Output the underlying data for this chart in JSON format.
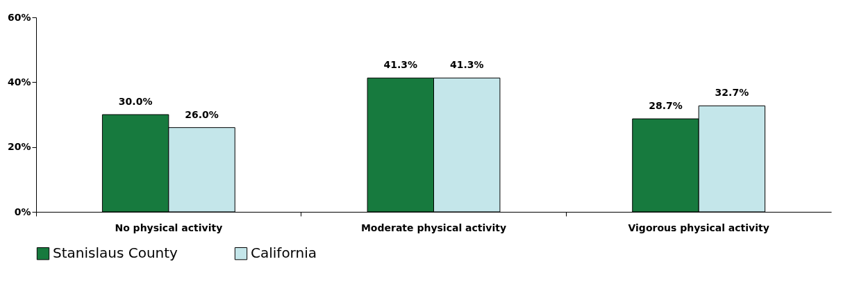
{
  "chart_data": {
    "type": "bar",
    "categories": [
      "No physical activity",
      "Moderate physical activity",
      "Vigorous physical activity"
    ],
    "series": [
      {
        "name": "Stanislaus County",
        "color": "#177a3e",
        "values": [
          30.0,
          41.3,
          28.7
        ],
        "value_labels": [
          "30.0%",
          "41.3%",
          "28.7%"
        ]
      },
      {
        "name": "California",
        "color": "#c4e6ea",
        "values": [
          26.0,
          41.3,
          32.7
        ],
        "value_labels": [
          "26.0%",
          "41.3%",
          "32.7%"
        ]
      }
    ],
    "ylim": [
      0,
      60
    ],
    "yticks": [
      {
        "value": 0,
        "label": "0%"
      },
      {
        "value": 20,
        "label": "20%"
      },
      {
        "value": 40,
        "label": "40%"
      },
      {
        "value": 60,
        "label": "60%"
      }
    ],
    "grid": false,
    "legend": "bottom"
  }
}
